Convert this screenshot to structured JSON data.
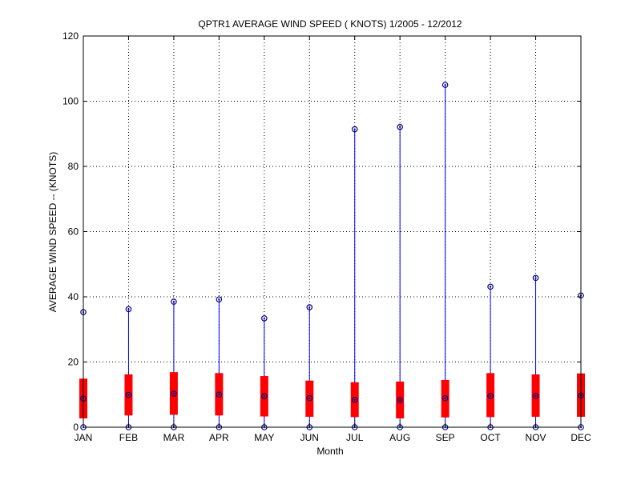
{
  "chart_data": {
    "type": "box",
    "title": "QPTR1  AVERAGE WIND SPEED ( KNOTS) 1/2005 - 12/2012",
    "xlabel": "Month",
    "ylabel": "AVERAGE WIND SPEED -- (KNOTS)",
    "categories": [
      "JAN",
      "FEB",
      "MAR",
      "APR",
      "MAY",
      "JUN",
      "JUL",
      "AUG",
      "SEP",
      "OCT",
      "NOV",
      "DEC"
    ],
    "ylim": [
      0,
      120
    ],
    "yticks": [
      0,
      20,
      40,
      60,
      80,
      100,
      120
    ],
    "ytick_labels": [
      "0",
      "20",
      "40",
      "60",
      "80",
      "100",
      "120"
    ],
    "grid": true,
    "series": [
      {
        "min": [
          0,
          0,
          0,
          0,
          0,
          0,
          0,
          0,
          0,
          0,
          0,
          0
        ],
        "q1": [
          2.7,
          3.6,
          3.8,
          3.6,
          3.3,
          3.2,
          3.1,
          2.7,
          3.0,
          3.1,
          3.2,
          3.2
        ],
        "median": [
          8.8,
          9.9,
          10.3,
          10.0,
          9.5,
          8.9,
          8.4,
          8.3,
          8.9,
          9.6,
          9.6,
          9.7
        ],
        "q3": [
          14.9,
          16.2,
          16.9,
          16.6,
          15.7,
          14.3,
          13.8,
          14.0,
          14.5,
          16.6,
          16.2,
          16.5
        ],
        "max": [
          35.3,
          36.2,
          38.5,
          39.2,
          33.4,
          36.8,
          91.4,
          92.1,
          105.0,
          43.1,
          45.8,
          40.4
        ]
      }
    ],
    "colors": {
      "box": "#ff0000",
      "whisker": "#0000ff",
      "marker": "#000080",
      "grid": "#000000"
    }
  }
}
